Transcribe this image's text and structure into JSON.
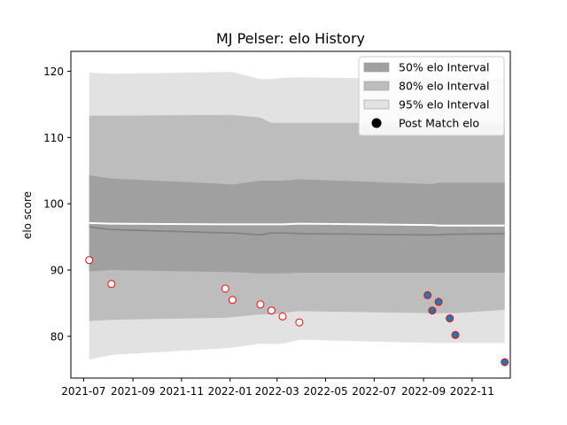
{
  "chart_data": {
    "type": "line",
    "title": "MJ Pelser: elo History",
    "xlabel": "",
    "ylabel": "elo score",
    "xlim": [
      "2021-06-15",
      "2022-12-19"
    ],
    "ylim": [
      73.7,
      123.0
    ],
    "x_ticks": [
      "2021-07",
      "2021-09",
      "2021-11",
      "2022-01",
      "2022-03",
      "2022-05",
      "2022-07",
      "2022-09",
      "2022-11"
    ],
    "y_ticks": [
      80,
      90,
      100,
      110,
      120
    ],
    "grid": false,
    "legend_position": "top-right",
    "legend": [
      {
        "label": "50% elo Interval",
        "kind": "band",
        "color": "#a0a0a0"
      },
      {
        "label": "80% elo Interval",
        "kind": "band",
        "color": "#bdbdbd"
      },
      {
        "label": "95% elo Interval",
        "kind": "band",
        "color": "#e2e2e2"
      },
      {
        "label": "Post Match elo",
        "kind": "marker",
        "color": "#000000"
      }
    ],
    "x": [
      "2021-07-08",
      "2021-08-05",
      "2021-12-26",
      "2022-01-04",
      "2022-02-08",
      "2022-02-22",
      "2022-03-08",
      "2022-03-29",
      "2022-09-06",
      "2022-09-12",
      "2022-09-20",
      "2022-10-04",
      "2022-10-11",
      "2022-12-12"
    ],
    "series": [
      {
        "role": "mean",
        "color": "#808080",
        "values": [
          96.5,
          96.1,
          95.6,
          95.6,
          95.3,
          95.6,
          95.6,
          95.5,
          95.3,
          95.3,
          95.3,
          95.4,
          95.4,
          95.5
        ]
      },
      {
        "role": "upper-line",
        "color": "#ffffff",
        "values": [
          97.1,
          97.0,
          96.9,
          96.9,
          96.9,
          96.9,
          96.9,
          97.0,
          96.8,
          96.8,
          96.7,
          96.7,
          96.7,
          96.7
        ]
      },
      {
        "role": "band-95",
        "color": "#e2e2e2",
        "upper": [
          119.8,
          119.6,
          119.9,
          119.9,
          118.8,
          118.8,
          119.0,
          119.1,
          118.8,
          118.8,
          118.9,
          118.9,
          118.9,
          118.9
        ],
        "lower": [
          76.5,
          77.2,
          78.2,
          78.3,
          78.9,
          78.8,
          78.9,
          79.5,
          79.0,
          79.0,
          79.0,
          79.0,
          79.0,
          79.0
        ]
      },
      {
        "role": "band-80",
        "color": "#bdbdbd",
        "upper": [
          113.3,
          113.3,
          113.4,
          113.4,
          113.0,
          112.2,
          112.2,
          112.2,
          112.2,
          112.2,
          112.2,
          112.2,
          112.2,
          112.2
        ],
        "lower": [
          82.3,
          82.5,
          82.8,
          82.9,
          83.3,
          83.3,
          83.5,
          83.8,
          83.5,
          83.5,
          83.5,
          83.5,
          83.5,
          84.0
        ]
      },
      {
        "role": "band-50",
        "color": "#a0a0a0",
        "upper": [
          104.3,
          103.8,
          103.0,
          102.9,
          103.5,
          103.5,
          103.5,
          103.7,
          103.0,
          103.0,
          103.2,
          103.2,
          103.2,
          103.2
        ],
        "lower": [
          89.8,
          90.0,
          89.7,
          89.7,
          89.5,
          89.5,
          89.5,
          89.6,
          89.6,
          89.6,
          89.6,
          89.6,
          89.6,
          89.6
        ]
      },
      {
        "role": "points",
        "name": "Post Match elo",
        "values": [
          91.5,
          87.9,
          87.2,
          85.5,
          84.8,
          83.9,
          83.0,
          82.1,
          86.2,
          83.9,
          85.2,
          82.7,
          80.2,
          76.1
        ],
        "fill": [
          "#ffffff",
          "#ffffff",
          "#ffffff",
          "#ffffff",
          "#ffffff",
          "#ffffff",
          "#ffffff",
          "#ffffff",
          "#1f77b4",
          "#1f77b4",
          "#1f77b4",
          "#1f77b4",
          "#1f77b4",
          "#1f77b4"
        ],
        "stroke": "#ff0000"
      }
    ]
  }
}
